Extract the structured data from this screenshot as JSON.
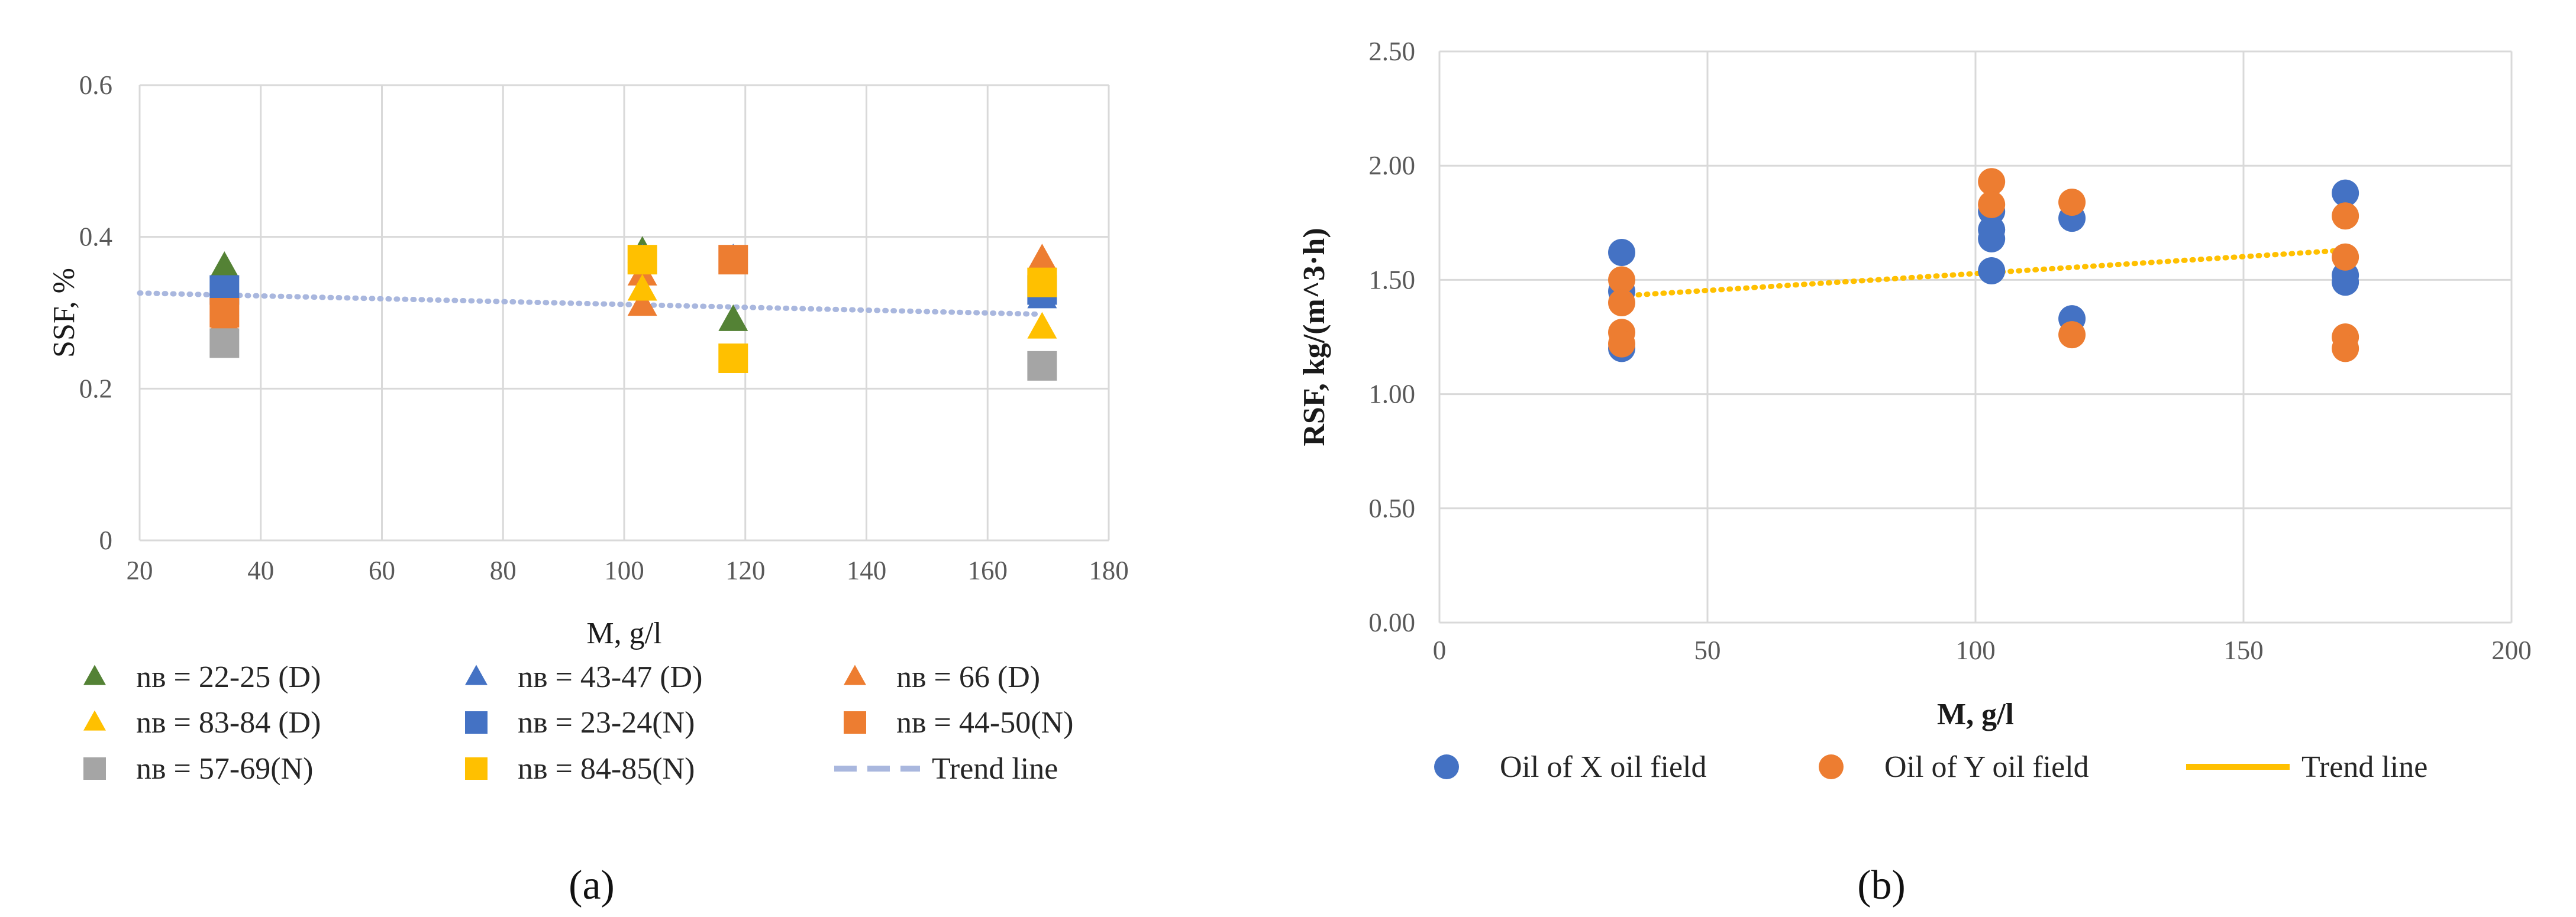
{
  "chart_data": [
    {
      "id": "a",
      "type": "scatter",
      "caption": "(a)",
      "xlabel": "M, g/l",
      "ylabel": "SSF, %",
      "xlim": [
        20,
        180
      ],
      "ylim": [
        0,
        0.6
      ],
      "xticks": [
        20,
        40,
        60,
        80,
        100,
        120,
        140,
        160,
        180
      ],
      "yticks": [
        {
          "v": 0,
          "label": "0"
        },
        {
          "v": 0.2,
          "label": "0.2"
        },
        {
          "v": 0.4,
          "label": "0.4"
        },
        {
          "v": 0.6,
          "label": "0.6"
        }
      ],
      "series": [
        {
          "name": "nв = 22-25 (D)",
          "marker": "triangle",
          "color": "#548235",
          "points": [
            [
              34,
              0.36
            ],
            [
              103,
              0.38
            ],
            [
              118,
              0.29
            ]
          ]
        },
        {
          "name": "nв = 43-47 (D)",
          "marker": "triangle",
          "color": "#4472C4",
          "points": [
            [
              34,
              0.31
            ],
            [
              103,
              0.37
            ],
            [
              118,
              0.37
            ],
            [
              169,
              0.32
            ]
          ]
        },
        {
          "name": "nв = 66 (D)",
          "marker": "triangle",
          "color": "#ED7D31",
          "points": [
            [
              34,
              0.29
            ],
            [
              103,
              0.31
            ],
            [
              103,
              0.35
            ],
            [
              169,
              0.37
            ]
          ]
        },
        {
          "name": "nв = 83-84 (D)",
          "marker": "triangle",
          "color": "#FFC000",
          "points": [
            [
              103,
              0.33
            ],
            [
              169,
              0.28
            ]
          ]
        },
        {
          "name": "nв = 23-24(N)",
          "marker": "square",
          "color": "#4472C4",
          "points": [
            [
              34,
              0.33
            ],
            [
              169,
              0.33
            ]
          ]
        },
        {
          "name": "nв = 44-50(N)",
          "marker": "square",
          "color": "#ED7D31",
          "points": [
            [
              34,
              0.3
            ],
            [
              118,
              0.37
            ]
          ]
        },
        {
          "name": "nв = 57-69(N)",
          "marker": "square",
          "color": "#A5A5A5",
          "points": [
            [
              34,
              0.26
            ],
            [
              169,
              0.23
            ]
          ]
        },
        {
          "name": "nв = 84-85(N)",
          "marker": "square",
          "color": "#FFC000",
          "points": [
            [
              103,
              0.37
            ],
            [
              118,
              0.24
            ],
            [
              169,
              0.34
            ]
          ]
        }
      ],
      "trend": {
        "name": "Trend line",
        "color": "#A9B7DE",
        "style": "dashed",
        "from": [
          20,
          0.326
        ],
        "to": [
          169,
          0.298
        ]
      }
    },
    {
      "id": "b",
      "type": "scatter",
      "caption": "(b)",
      "xlabel": "M, g/l",
      "ylabel": "RSF,  kg/(m^3·h)",
      "xlim": [
        0,
        200
      ],
      "ylim": [
        0,
        2.5
      ],
      "xticks": [
        0,
        50,
        100,
        150,
        200
      ],
      "yticks": [
        {
          "v": 0,
          "label": "0.00"
        },
        {
          "v": 0.5,
          "label": "0.50"
        },
        {
          "v": 1.0,
          "label": "1.00"
        },
        {
          "v": 1.5,
          "label": "1.50"
        },
        {
          "v": 2.0,
          "label": "2.00"
        },
        {
          "v": 2.5,
          "label": "2.50"
        }
      ],
      "series": [
        {
          "name": "Oil of X oil field",
          "marker": "circle",
          "color": "#4472C4",
          "points": [
            [
              34,
              1.62
            ],
            [
              34,
              1.45
            ],
            [
              34,
              1.2
            ],
            [
              103,
              1.8
            ],
            [
              103,
              1.72
            ],
            [
              103,
              1.68
            ],
            [
              103,
              1.54
            ],
            [
              118,
              1.77
            ],
            [
              118,
              1.33
            ],
            [
              169,
              1.88
            ],
            [
              169,
              1.52
            ],
            [
              169,
              1.49
            ]
          ]
        },
        {
          "name": "Oil of Y oil field",
          "marker": "circle",
          "color": "#ED7D31",
          "points": [
            [
              34,
              1.5
            ],
            [
              34,
              1.4
            ],
            [
              34,
              1.27
            ],
            [
              34,
              1.22
            ],
            [
              103,
              1.93
            ],
            [
              103,
              1.83
            ],
            [
              118,
              1.84
            ],
            [
              118,
              1.26
            ],
            [
              169,
              1.78
            ],
            [
              169,
              1.6
            ],
            [
              169,
              1.25
            ],
            [
              169,
              1.2
            ]
          ]
        }
      ],
      "trend": {
        "name": "Trend line",
        "color": "#FFC000",
        "style": "dotted",
        "from": [
          34,
          1.43
        ],
        "to": [
          169,
          1.63
        ]
      }
    }
  ]
}
